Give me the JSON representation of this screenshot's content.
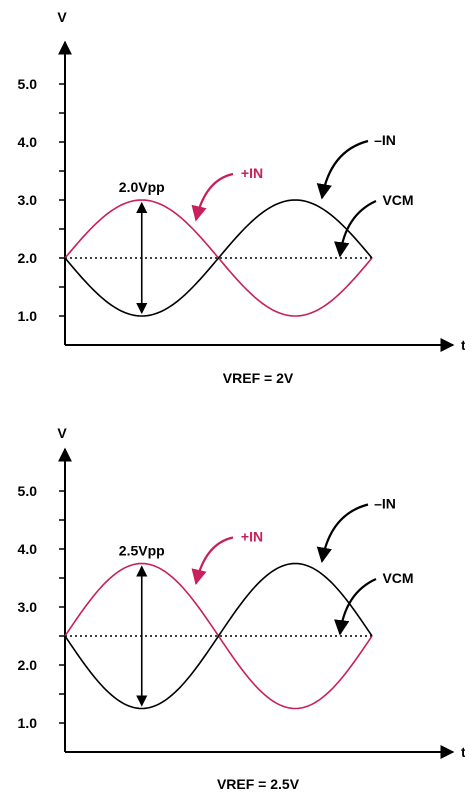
{
  "colors": {
    "positive_input": "#c8205c",
    "negative_input": "#000000",
    "axis": "#000000"
  },
  "chart_data": [
    {
      "type": "line",
      "ylabel": "V",
      "xlabel": "t",
      "ylim": [
        0.55,
        6.1
      ],
      "y_ticks": [
        1.0,
        2.0,
        3.0,
        4.0,
        5.0
      ],
      "y_tick_labels": [
        "1.0",
        "2.0",
        "3.0",
        "4.0",
        "5.0"
      ],
      "minor_ticks": [
        1.5,
        2.5,
        3.5,
        4.5
      ],
      "caption": "VREF = 2V",
      "vpp_label": "2.0Vpp",
      "vcm": 2.0,
      "amplitude": 1.0,
      "cycles": 1,
      "series": [
        {
          "name": "+IN",
          "phase": 0
        },
        {
          "name": "–IN",
          "phase": 180
        },
        {
          "name": "VCM",
          "phase": null
        }
      ]
    },
    {
      "type": "line",
      "ylabel": "V",
      "xlabel": "t",
      "ylim": [
        0.55,
        6.1
      ],
      "y_ticks": [
        1.0,
        2.0,
        3.0,
        4.0,
        5.0
      ],
      "y_tick_labels": [
        "1.0",
        "2.0",
        "3.0",
        "4.0",
        "5.0"
      ],
      "minor_ticks": [
        1.5,
        2.5,
        3.5,
        4.5
      ],
      "caption": "VREF = 2.5V",
      "vpp_label": "2.5Vpp",
      "vcm": 2.5,
      "amplitude": 1.25,
      "cycles": 1,
      "series": [
        {
          "name": "+IN",
          "phase": 0
        },
        {
          "name": "–IN",
          "phase": 180
        },
        {
          "name": "VCM",
          "phase": null
        }
      ]
    }
  ]
}
